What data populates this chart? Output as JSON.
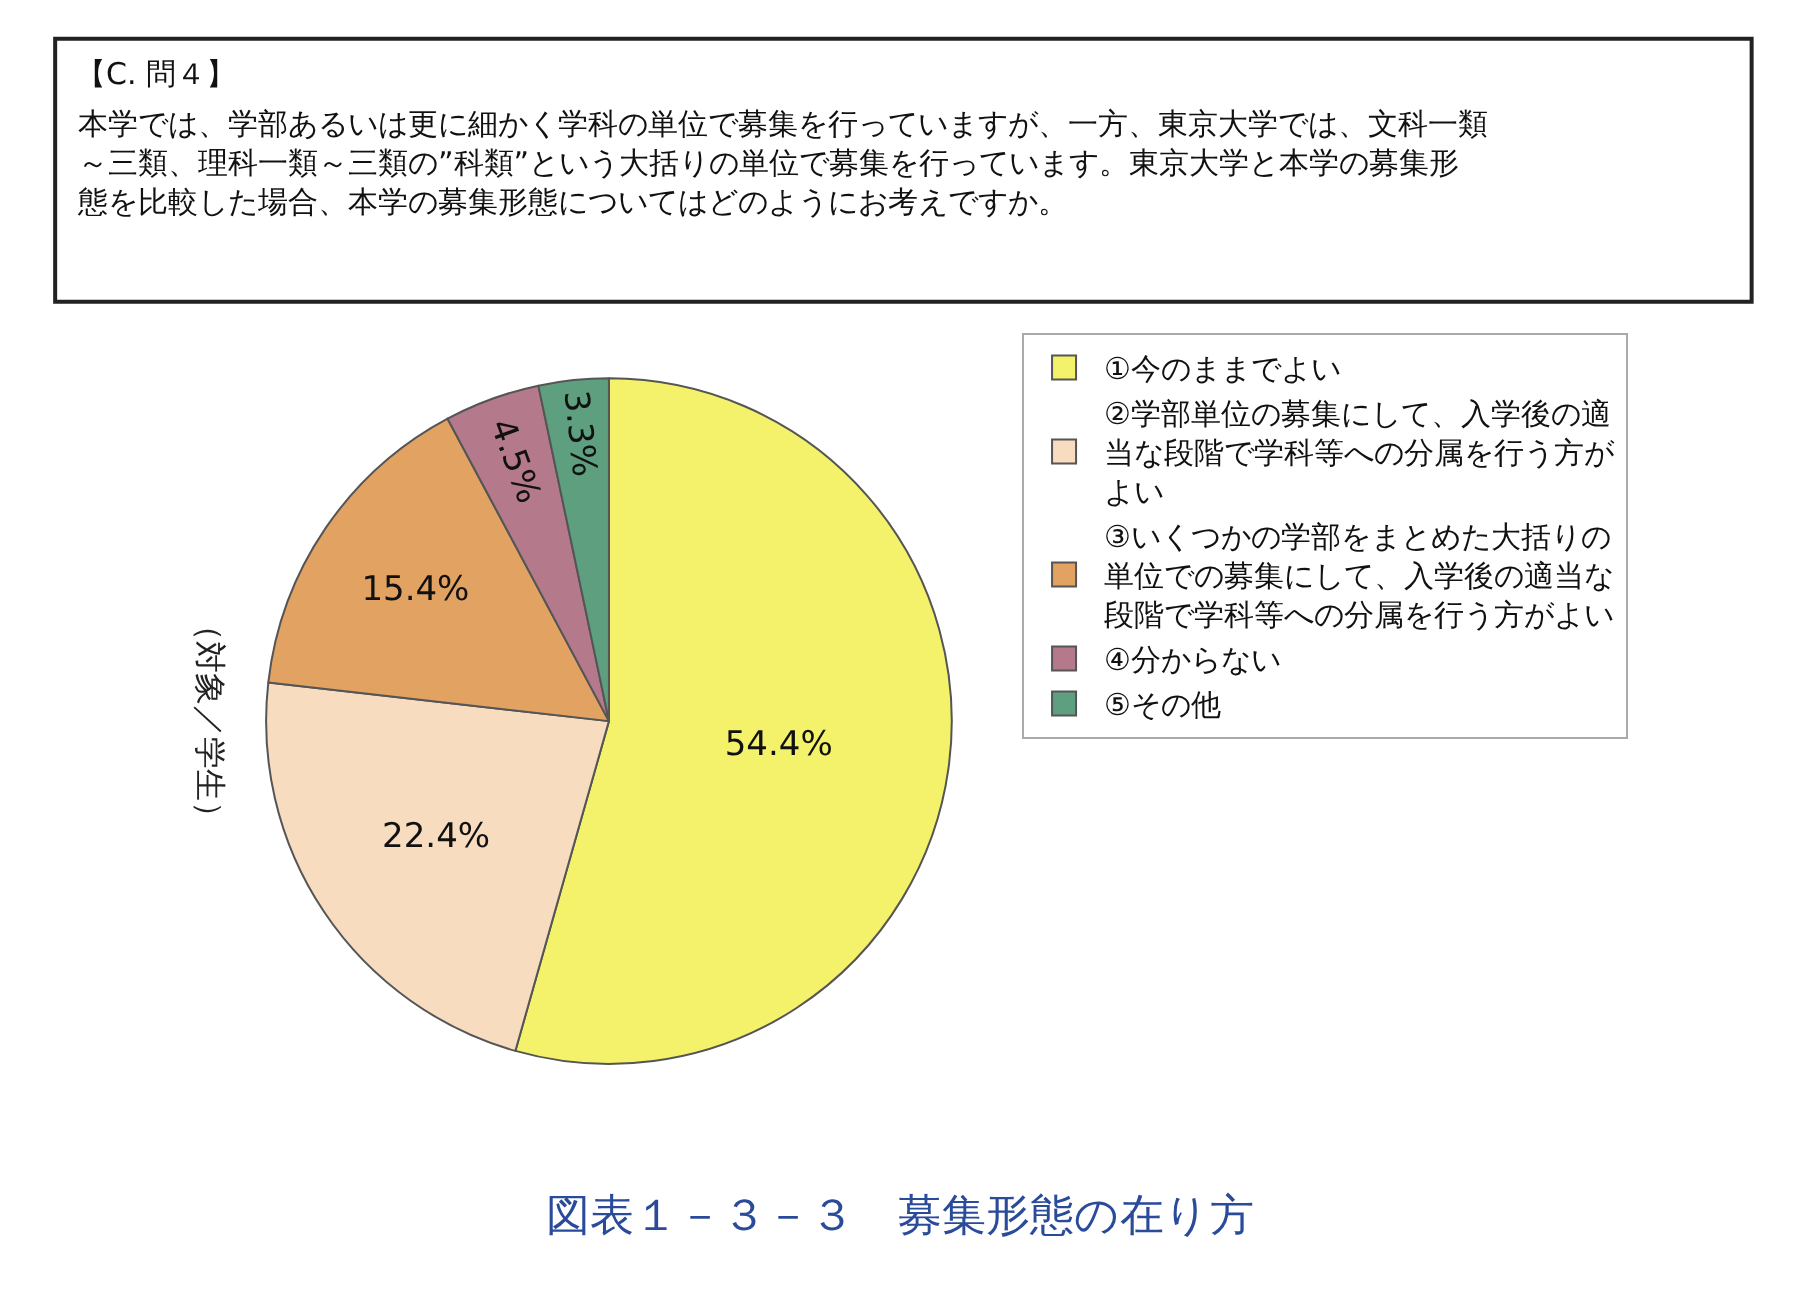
{
  "chart_data": {
    "type": "pie",
    "title": "図表１－３－３　募集形態の在り方",
    "subtitle": "【C. 問４】",
    "annotations": [
      "本学では、学部あるいは更に細かく学科の単位で募集を行っていますが、一方、東京大学では、文科一類～三類、理科一類～三類の”科類”という大括りの単位で募集を行っています。東京大学と本学の募集形態を比較した場合、本学の募集形態についてはどのようにお考えですか。"
    ],
    "ylabel": "（対象／学生）",
    "categories": [
      "①今のままでよい",
      "②学部単位の募集にして、入学後の適当な段階で学科等への分属を行う方がよい",
      "③いくつかの学部をまとめた大括りの単位での募集にして、入学後の適当な段階で学科等への分属を行う方がよい",
      "④分からない",
      "⑤その他"
    ],
    "values": [
      54.4,
      22.4,
      15.4,
      4.5,
      3.3
    ],
    "value_labels": [
      "54.4%",
      "22.4%",
      "15.4%",
      "4.5%",
      "3.3%"
    ],
    "colors": [
      "#f4f26a",
      "#f7dcc0",
      "#e2a262",
      "#b47a8c",
      "#5e9f80"
    ],
    "legend": "right"
  }
}
